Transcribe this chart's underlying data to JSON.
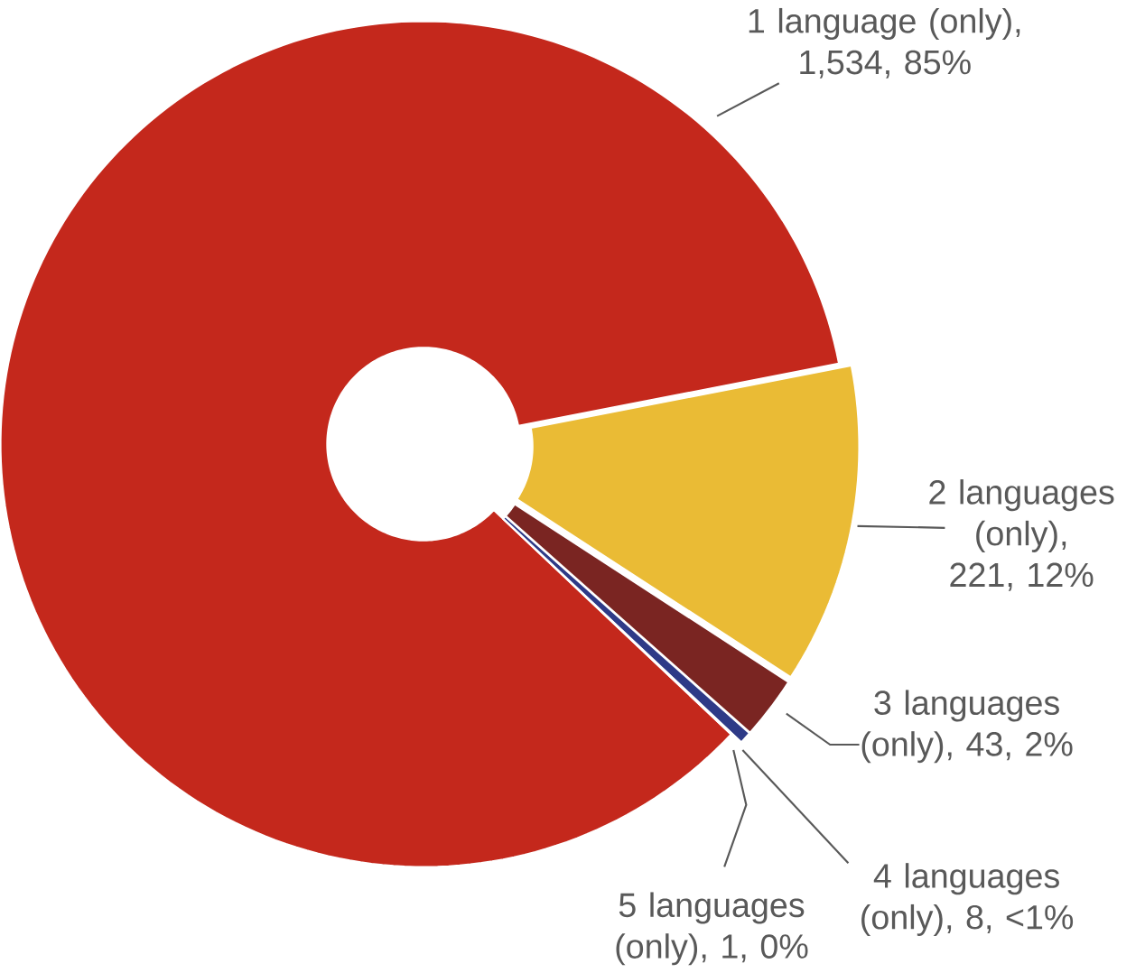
{
  "chart_data": {
    "type": "donut",
    "categories": [
      "1 language (only), 1,534, 85%",
      "2 languages (only), 221, 12%",
      "3 languages (only), 43, 2%",
      "4 languages (only), 8, <1%",
      "5 languages (only), 1, 0%"
    ],
    "values": [
      1534,
      221,
      43,
      8,
      1
    ],
    "colors": [
      "#c4281c",
      "#eabb35",
      "#7a2522",
      "#2e3a87",
      "#8c8c8c"
    ]
  }
}
